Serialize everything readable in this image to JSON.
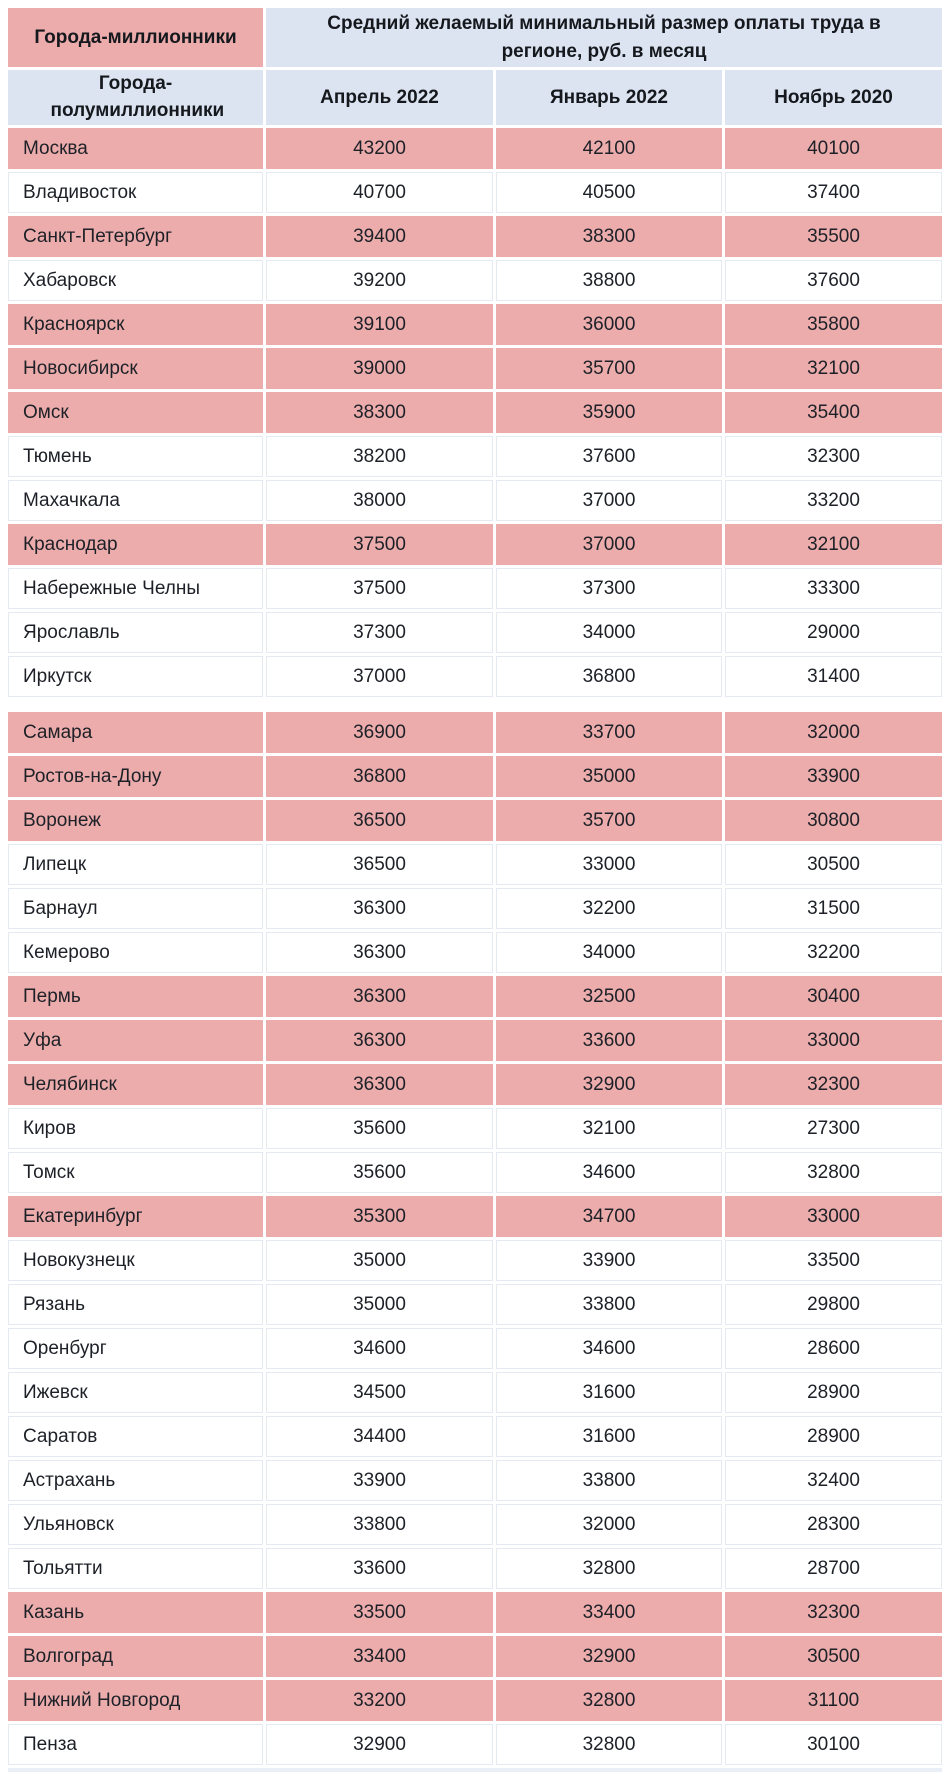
{
  "header": {
    "million_cities_label": "Города-миллионники",
    "half_million_cities_label": "Города-полумиллионники",
    "title": "Средний желаемый минимальный размер оплаты труда в регионе, руб. в месяц",
    "periods": [
      "Апрель 2022",
      "Январь 2022",
      "Ноябрь 2020"
    ]
  },
  "colors": {
    "million_row_bg": "#ecacac",
    "header_panel_bg": "#dde4f1",
    "white_row_border": "#e4e9f2",
    "bottom_strip_bg": "#e9eef7",
    "text": "#1d2127"
  },
  "chart_data": {
    "type": "table",
    "title": "Средний желаемый минимальный размер оплаты труда в регионе, руб. в месяц",
    "columns": [
      "Город",
      "Апрель 2022",
      "Январь 2022",
      "Ноябрь 2020"
    ],
    "legend": {
      "million": "Города-миллионники (розовые строки)",
      "half_million": "Города-полумиллионники (белые строки)"
    },
    "rows": [
      {
        "city": "Москва",
        "category": "million",
        "values": [
          43200,
          42100,
          40100
        ]
      },
      {
        "city": "Владивосток",
        "category": "half-million",
        "values": [
          40700,
          40500,
          37400
        ]
      },
      {
        "city": "Санкт-Петербург",
        "category": "million",
        "values": [
          39400,
          38300,
          35500
        ]
      },
      {
        "city": "Хабаровск",
        "category": "half-million",
        "values": [
          39200,
          38800,
          37600
        ]
      },
      {
        "city": "Красноярск",
        "category": "million",
        "values": [
          39100,
          36000,
          35800
        ]
      },
      {
        "city": "Новосибирск",
        "category": "million",
        "values": [
          39000,
          35700,
          32100
        ]
      },
      {
        "city": "Омск",
        "category": "million",
        "values": [
          38300,
          35900,
          35400
        ]
      },
      {
        "city": "Тюмень",
        "category": "half-million",
        "values": [
          38200,
          37600,
          32300
        ]
      },
      {
        "city": "Махачкала",
        "category": "half-million",
        "values": [
          38000,
          37000,
          33200
        ]
      },
      {
        "city": "Краснодар",
        "category": "million",
        "values": [
          37500,
          37000,
          32100
        ]
      },
      {
        "city": "Набережные Челны",
        "category": "half-million",
        "values": [
          37500,
          37300,
          33300
        ]
      },
      {
        "city": "Ярославль",
        "category": "half-million",
        "values": [
          37300,
          34000,
          29000
        ]
      },
      {
        "city": "Иркутск",
        "category": "half-million",
        "values": [
          37000,
          36800,
          31400
        ]
      },
      {
        "divider": true
      },
      {
        "city": "Самара",
        "category": "million",
        "values": [
          36900,
          33700,
          32000
        ]
      },
      {
        "city": "Ростов-на-Дону",
        "category": "million",
        "values": [
          36800,
          35000,
          33900
        ]
      },
      {
        "city": "Воронеж",
        "category": "million",
        "values": [
          36500,
          35700,
          30800
        ]
      },
      {
        "city": "Липецк",
        "category": "half-million",
        "values": [
          36500,
          33000,
          30500
        ]
      },
      {
        "city": "Барнаул",
        "category": "half-million",
        "values": [
          36300,
          32200,
          31500
        ]
      },
      {
        "city": "Кемерово",
        "category": "half-million",
        "values": [
          36300,
          34000,
          32200
        ]
      },
      {
        "city": "Пермь",
        "category": "million",
        "values": [
          36300,
          32500,
          30400
        ]
      },
      {
        "city": "Уфа",
        "category": "million",
        "values": [
          36300,
          33600,
          33000
        ]
      },
      {
        "city": "Челябинск",
        "category": "million",
        "values": [
          36300,
          32900,
          32300
        ]
      },
      {
        "city": "Киров",
        "category": "half-million",
        "values": [
          35600,
          32100,
          27300
        ]
      },
      {
        "city": "Томск",
        "category": "half-million",
        "values": [
          35600,
          34600,
          32800
        ]
      },
      {
        "city": "Екатеринбург",
        "category": "million",
        "values": [
          35300,
          34700,
          33000
        ]
      },
      {
        "city": "Новокузнецк",
        "category": "half-million",
        "values": [
          35000,
          33900,
          33500
        ]
      },
      {
        "city": "Рязань",
        "category": "half-million",
        "values": [
          35000,
          33800,
          29800
        ]
      },
      {
        "city": "Оренбург",
        "category": "half-million",
        "values": [
          34600,
          34600,
          28600
        ]
      },
      {
        "city": "Ижевск",
        "category": "half-million",
        "values": [
          34500,
          31600,
          28900
        ]
      },
      {
        "city": "Саратов",
        "category": "half-million",
        "values": [
          34400,
          31600,
          28900
        ]
      },
      {
        "city": "Астрахань",
        "category": "half-million",
        "values": [
          33900,
          33800,
          32400
        ]
      },
      {
        "city": "Ульяновск",
        "category": "half-million",
        "values": [
          33800,
          32000,
          28300
        ]
      },
      {
        "city": "Тольятти",
        "category": "half-million",
        "values": [
          33600,
          32800,
          28700
        ]
      },
      {
        "city": "Казань",
        "category": "million",
        "values": [
          33500,
          33400,
          32300
        ]
      },
      {
        "city": "Волгоград",
        "category": "million",
        "values": [
          33400,
          32900,
          30500
        ]
      },
      {
        "city": "Нижний Новгород",
        "category": "million",
        "values": [
          33200,
          32800,
          31100
        ]
      },
      {
        "city": "Пенза",
        "category": "half-million",
        "values": [
          32900,
          32800,
          30100
        ]
      }
    ]
  }
}
